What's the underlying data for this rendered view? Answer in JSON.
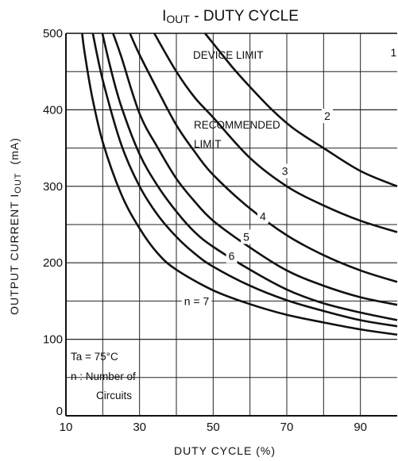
{
  "chart_data": {
    "type": "line",
    "title": {
      "main": "I",
      "sub": "OUT",
      "rest": " - DUTY CYCLE"
    },
    "xlabel": "DUTY CYCLE (%)",
    "ylabel": {
      "main": "OUTPUT CURRENT I",
      "sub": "OUT",
      "unit": "(mA)"
    },
    "xlim": [
      10,
      100
    ],
    "ylim": [
      0,
      500
    ],
    "grid": true,
    "x_tick_labels": [
      "10",
      "30",
      "50",
      "70",
      "90"
    ],
    "y_tick_labels": [
      "0",
      "100",
      "200",
      "300",
      "400",
      "500"
    ],
    "annotations": {
      "device_limit": "DEVICE LIMIT",
      "recommended_limit_1": "RECOMMENDED",
      "recommended_limit_2": "LIMIT",
      "ta": "Ta = 75°C",
      "legend_1": "n : Number of",
      "legend_2": "Circuits"
    },
    "series": [
      {
        "name": "1",
        "x": [
          47.8,
          55,
          60,
          66,
          72,
          80,
          90,
          100
        ],
        "y": [
          500,
          457,
          430,
          400,
          375,
          350,
          320,
          300
        ]
      },
      {
        "name": "2",
        "x": [
          34,
          40,
          45,
          50,
          60,
          70,
          80,
          90,
          100
        ],
        "y": [
          500,
          450,
          416,
          390,
          337,
          300,
          275,
          255,
          240
        ]
      },
      {
        "name": "3",
        "x": [
          27.4,
          30,
          35,
          40,
          45,
          50,
          60,
          70,
          80,
          90,
          100
        ],
        "y": [
          500,
          472,
          425,
          380,
          345,
          315,
          271,
          236,
          210,
          190,
          175
        ]
      },
      {
        "name": "4",
        "x": [
          22.8,
          25,
          30,
          35,
          40,
          45,
          50,
          60,
          70,
          80,
          90,
          100
        ],
        "y": [
          500,
          470,
          395,
          350,
          310,
          280,
          255,
          220,
          190,
          170,
          155,
          145
        ]
      },
      {
        "name": "5",
        "x": [
          19.9,
          22,
          25,
          30,
          35,
          40,
          45,
          50,
          60,
          70,
          80,
          90,
          100
        ],
        "y": [
          500,
          457,
          405,
          342,
          300,
          267,
          240,
          221,
          191,
          165,
          147,
          135,
          125
        ]
      },
      {
        "name": "6",
        "x": [
          17.3,
          20,
          25,
          30,
          35,
          40,
          45,
          50,
          60,
          70,
          80,
          90,
          100
        ],
        "y": [
          500,
          439,
          355,
          300,
          262,
          234,
          212,
          195,
          170,
          151,
          137,
          125,
          117
        ]
      },
      {
        "name": "7",
        "x": [
          14.4,
          15,
          17,
          20,
          25,
          30,
          35,
          40,
          50,
          60,
          70,
          80,
          90,
          100
        ],
        "y": [
          500,
          477,
          420,
          358,
          290,
          245,
          212,
          191,
          164,
          146,
          132,
          122,
          113,
          106
        ]
      }
    ],
    "curve_labels": [
      {
        "text": "1",
        "x": 99,
        "y": 475
      },
      {
        "text": "2",
        "x": 81,
        "y": 392
      },
      {
        "text": "3",
        "x": 69.5,
        "y": 320
      },
      {
        "text": "4",
        "x": 63.5,
        "y": 261
      },
      {
        "text": "5",
        "x": 59,
        "y": 234
      },
      {
        "text": "6",
        "x": 55,
        "y": 209
      },
      {
        "text": "n = 7",
        "x": 45.5,
        "y": 150
      }
    ]
  }
}
